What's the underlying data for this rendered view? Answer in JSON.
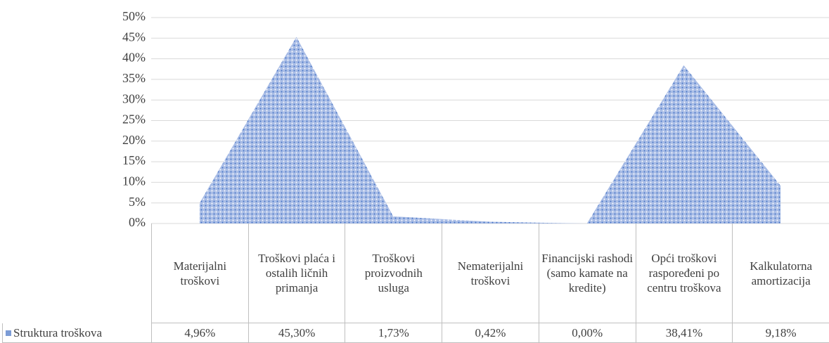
{
  "chart_data": {
    "type": "area",
    "categories": [
      "Materijalni troškovi",
      "Troškovi plaća i ostalih ličnih primanja",
      "Troškovi proizvodnih usluga",
      "Nematerijalni troškovi",
      "Financijski rashodi (samo kamate na kredite)",
      "Opći troškovi raspoređeni po centru troškova",
      "Kalkulatorna amortizacija"
    ],
    "series": [
      {
        "name": "Struktura troškova",
        "color": "#4472c4",
        "values": [
          4.96,
          45.3,
          1.73,
          0.42,
          0.0,
          38.41,
          9.18
        ],
        "value_labels": [
          "4,96%",
          "45,30%",
          "1,73%",
          "0,42%",
          "0,00%",
          "38,41%",
          "9,18%"
        ]
      }
    ],
    "ylim": [
      0,
      50
    ],
    "yticks": [
      {
        "value": 0,
        "label": "0%"
      },
      {
        "value": 5,
        "label": "5%"
      },
      {
        "value": 10,
        "label": "10%"
      },
      {
        "value": 15,
        "label": "15%"
      },
      {
        "value": 20,
        "label": "20%"
      },
      {
        "value": 25,
        "label": "25%"
      },
      {
        "value": 30,
        "label": "30%"
      },
      {
        "value": 35,
        "label": "35%"
      },
      {
        "value": 40,
        "label": "40%"
      },
      {
        "value": 45,
        "label": "45%"
      },
      {
        "value": 50,
        "label": "50%"
      }
    ],
    "grid": true,
    "data_table": true
  }
}
